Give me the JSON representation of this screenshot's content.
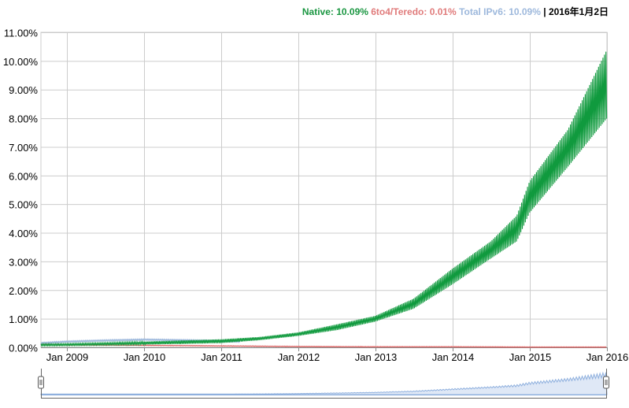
{
  "legend": {
    "native_label": "Native: 10.09%",
    "sixto4_label": "6to4/Teredo: 0.01%",
    "total_label": "Total IPv6: 10.09%",
    "separator": "|",
    "date": "2016年1月2日"
  },
  "colors": {
    "native": "#109a3e",
    "sixto4": "#e06666",
    "total": "#9db8dc",
    "grid": "#cccccc",
    "axis": "#000000"
  },
  "chart_data": {
    "type": "line",
    "title": "",
    "xlabel": "",
    "ylabel": "",
    "ylim": [
      0,
      11
    ],
    "xlim": [
      "2008-09-01",
      "2016-01-02"
    ],
    "y_ticks": [
      "0.00%",
      "1.00%",
      "2.00%",
      "3.00%",
      "4.00%",
      "5.00%",
      "6.00%",
      "7.00%",
      "8.00%",
      "9.00%",
      "10.00%",
      "11.00%"
    ],
    "x_ticks": [
      {
        "date": "2009-01-01",
        "label": "Jan 2009"
      },
      {
        "date": "2010-01-01",
        "label": "Jan 2010"
      },
      {
        "date": "2011-01-01",
        "label": "Jan 2011"
      },
      {
        "date": "2012-01-01",
        "label": "Jan 2012"
      },
      {
        "date": "2013-01-01",
        "label": "Jan 2013"
      },
      {
        "date": "2014-01-01",
        "label": "Jan 2014"
      },
      {
        "date": "2015-01-01",
        "label": "Jan 2015"
      },
      {
        "date": "2016-01-01",
        "label": "Jan 2016"
      }
    ],
    "grid": true,
    "legend_position": "top-right",
    "series": [
      {
        "name": "Native",
        "color": "#109a3e",
        "x": [
          "2008-09-01",
          "2009-01-01",
          "2009-07-01",
          "2010-01-01",
          "2010-07-01",
          "2011-01-01",
          "2011-07-01",
          "2012-01-01",
          "2012-07-01",
          "2013-01-01",
          "2013-07-01",
          "2014-01-01",
          "2014-07-01",
          "2014-11-01",
          "2015-01-01",
          "2015-07-01",
          "2016-01-02"
        ],
        "y_low": [
          0.05,
          0.06,
          0.08,
          0.1,
          0.12,
          0.15,
          0.25,
          0.4,
          0.6,
          0.9,
          1.35,
          2.2,
          3.1,
          3.7,
          4.7,
          6.3,
          8.0
        ],
        "y_high": [
          0.12,
          0.13,
          0.16,
          0.2,
          0.24,
          0.28,
          0.36,
          0.52,
          0.8,
          1.1,
          1.7,
          2.75,
          3.7,
          4.6,
          5.8,
          7.6,
          10.4
        ]
      },
      {
        "name": "6to4/Teredo",
        "color": "#e06666",
        "x": [
          "2008-09-01",
          "2009-01-01",
          "2010-01-01",
          "2011-01-01",
          "2012-01-01",
          "2013-01-01",
          "2014-01-01",
          "2015-01-01",
          "2016-01-02"
        ],
        "y": [
          0.1,
          0.09,
          0.07,
          0.05,
          0.03,
          0.02,
          0.02,
          0.01,
          0.01
        ]
      },
      {
        "name": "Total IPv6",
        "color": "#9db8dc",
        "x": [
          "2008-09-01",
          "2009-01-01",
          "2009-07-01",
          "2010-01-01",
          "2010-07-01",
          "2011-01-01",
          "2011-04-01"
        ],
        "y": [
          0.15,
          0.2,
          0.24,
          0.27,
          0.25,
          0.22,
          0.2
        ]
      }
    ]
  },
  "range_selector": {
    "label": "time range selector"
  }
}
